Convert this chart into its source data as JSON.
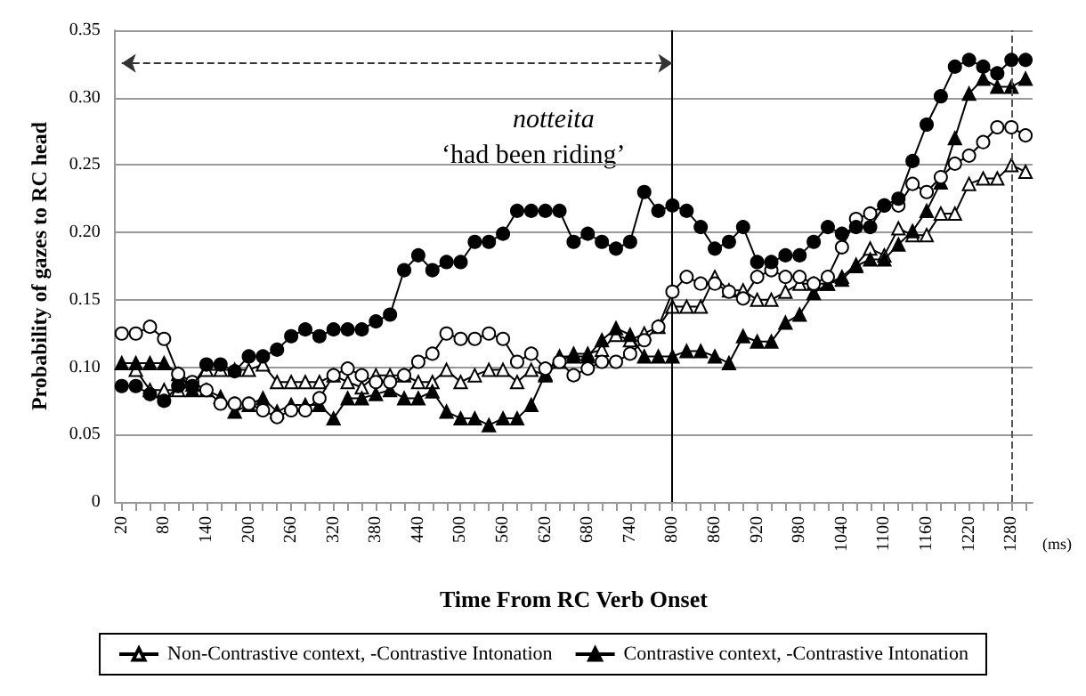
{
  "chart_data": {
    "type": "line",
    "xlabel": "Time From RC Verb Onset",
    "ylabel": "Probability of gazes to RC head",
    "categories": [
      "20",
      null,
      null,
      "80",
      null,
      null,
      "140",
      null,
      null,
      "200",
      null,
      null,
      "260",
      null,
      null,
      "320",
      null,
      null,
      "380",
      null,
      null,
      "440",
      null,
      null,
      "500",
      null,
      null,
      "560",
      null,
      null,
      "620",
      null,
      null,
      "680",
      null,
      null,
      "740",
      null,
      null,
      "800",
      null,
      null,
      "860",
      null,
      null,
      "920",
      null,
      null,
      "980",
      null,
      null,
      "1040",
      null,
      null,
      "1100",
      null,
      null,
      "1160",
      null,
      null,
      "1220",
      null,
      null,
      "1280",
      null
    ],
    "series": [
      {
        "name": "Non-Contrastive context, -Contrastive Intonation",
        "color": "#ffffff",
        "marker": "triangle",
        "values": [
          null,
          0.098,
          0.083,
          0.083,
          0.083,
          0.087,
          0.098,
          0.098,
          0.098,
          0.098,
          0.102,
          0.089,
          0.089,
          0.089,
          0.089,
          0.094,
          0.089,
          0.085,
          0.094,
          0.094,
          0.094,
          0.089,
          0.089,
          0.098,
          0.089,
          0.094,
          0.098,
          0.098,
          0.089,
          0.098,
          0.094,
          0.104,
          0.11,
          0.11,
          0.113,
          0.124,
          0.12,
          0.125,
          0.13,
          0.145,
          0.145,
          0.145,
          0.167,
          0.157,
          0.157,
          0.15,
          0.15,
          0.156,
          0.162,
          0.162,
          0.162,
          0.167,
          0.176,
          0.188,
          0.183,
          0.203,
          0.198,
          0.198,
          0.214,
          0.214,
          0.236,
          0.24,
          0.24,
          0.25,
          0.245
        ]
      },
      {
        "name": "Contrastive context, -Contrastive Intonation",
        "color": "#000000",
        "marker": "triangle",
        "values": [
          0.103,
          0.103,
          0.103,
          0.103,
          0.095,
          0.083,
          0.083,
          0.078,
          0.067,
          0.072,
          0.077,
          0.067,
          0.072,
          0.072,
          0.072,
          0.062,
          0.077,
          0.077,
          0.08,
          0.083,
          0.077,
          0.077,
          0.082,
          0.067,
          0.062,
          0.062,
          0.057,
          0.062,
          0.062,
          0.072,
          0.095,
          0.108,
          0.108,
          0.108,
          0.12,
          0.129,
          0.124,
          0.108,
          0.108,
          0.108,
          0.112,
          0.112,
          0.108,
          0.103,
          0.123,
          0.119,
          0.119,
          0.133,
          0.139,
          0.155,
          0.162,
          0.165,
          0.175,
          0.18,
          0.18,
          0.191,
          0.201,
          0.216,
          0.237,
          0.27,
          0.303,
          0.314,
          0.308,
          0.308,
          0.314
        ]
      },
      {
        "color": "#ffffff",
        "marker": "circle",
        "values": [
          0.125,
          0.125,
          0.13,
          0.121,
          0.095,
          0.089,
          0.083,
          0.073,
          0.073,
          0.073,
          0.068,
          0.063,
          0.068,
          0.068,
          0.077,
          0.094,
          0.099,
          0.094,
          0.089,
          0.089,
          0.094,
          0.104,
          0.11,
          0.125,
          0.121,
          0.121,
          0.125,
          0.121,
          0.104,
          0.11,
          0.099,
          0.104,
          0.094,
          0.099,
          0.104,
          0.104,
          0.11,
          0.12,
          0.13,
          0.156,
          0.167,
          0.162,
          0.162,
          0.156,
          0.151,
          0.167,
          0.172,
          0.167,
          0.167,
          0.162,
          0.167,
          0.189,
          0.21,
          0.214,
          0.22,
          0.22,
          0.236,
          0.23,
          0.241,
          0.251,
          0.257,
          0.267,
          0.278,
          0.278,
          0.272
        ]
      },
      {
        "color": "#000000",
        "marker": "circle",
        "values": [
          0.086,
          0.086,
          0.08,
          0.075,
          0.086,
          0.086,
          0.102,
          0.102,
          0.097,
          0.108,
          0.108,
          0.113,
          0.123,
          0.128,
          0.123,
          0.128,
          0.128,
          0.128,
          0.134,
          0.139,
          0.172,
          0.183,
          0.172,
          0.178,
          0.178,
          0.193,
          0.193,
          0.199,
          0.216,
          0.216,
          0.216,
          0.216,
          0.193,
          0.199,
          0.193,
          0.188,
          0.193,
          0.23,
          0.216,
          0.22,
          0.216,
          0.204,
          0.188,
          0.193,
          0.204,
          0.178,
          0.178,
          0.183,
          0.183,
          0.193,
          0.204,
          0.199,
          0.204,
          0.204,
          0.22,
          0.225,
          0.253,
          0.28,
          0.301,
          0.323,
          0.328,
          0.323,
          0.318,
          0.328,
          0.328
        ]
      }
    ],
    "ylim": [
      0,
      0.35
    ],
    "yticks": [
      0,
      0.05,
      {
        "value": 0.1,
        "label": "0.10"
      },
      0.15,
      {
        "value": 0.2,
        "label": "0.20"
      },
      0.25,
      {
        "value": 0.3,
        "label": "0.30"
      },
      0.35
    ],
    "grid": "y",
    "legend": "bottom",
    "line_style": "solid",
    "ref_lines": [
      {
        "axis": "x",
        "value": "800",
        "color": "#000000",
        "line_style": "solid"
      },
      {
        "axis": "x",
        "value": "1280",
        "color": "#555555",
        "line_style": "dashed"
      }
    ],
    "annotations": [
      "notteita",
      "‘had been riding’",
      "(ms)"
    ]
  }
}
